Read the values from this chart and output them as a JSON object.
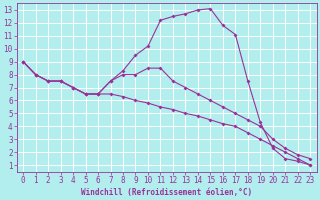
{
  "xlabel": "Windchill (Refroidissement éolien,°C)",
  "bg_color": "#b2eeee",
  "grid_color": "#ffffff",
  "line_color": "#993399",
  "spine_color": "#993399",
  "xlim": [
    -0.5,
    23.5
  ],
  "ylim": [
    0.5,
    13.5
  ],
  "xticks": [
    0,
    1,
    2,
    3,
    4,
    5,
    6,
    7,
    8,
    9,
    10,
    11,
    12,
    13,
    14,
    15,
    16,
    17,
    18,
    19,
    20,
    21,
    22,
    23
  ],
  "yticks": [
    1,
    2,
    3,
    4,
    5,
    6,
    7,
    8,
    9,
    10,
    11,
    12,
    13
  ],
  "line1_x": [
    0,
    1,
    2,
    3,
    4,
    5,
    6,
    7,
    8,
    9,
    10,
    11,
    12,
    13,
    14,
    15,
    16,
    17,
    18,
    19,
    20,
    21,
    22,
    23
  ],
  "line1_y": [
    9.0,
    8.0,
    7.5,
    7.5,
    7.0,
    6.5,
    6.5,
    7.5,
    8.3,
    9.5,
    10.2,
    12.2,
    12.5,
    12.7,
    13.0,
    13.1,
    11.8,
    11.1,
    7.5,
    4.3,
    2.3,
    1.5,
    1.3,
    1.0
  ],
  "line2_x": [
    0,
    1,
    2,
    3,
    4,
    5,
    6,
    7,
    8,
    9,
    10,
    11,
    12,
    13,
    14,
    15,
    16,
    17,
    18,
    19,
    20,
    21,
    22,
    23
  ],
  "line2_y": [
    9.0,
    8.0,
    7.5,
    7.5,
    7.0,
    6.5,
    6.5,
    7.5,
    8.0,
    8.0,
    8.5,
    8.5,
    7.5,
    7.0,
    6.5,
    6.0,
    5.5,
    5.0,
    4.5,
    4.0,
    3.0,
    2.3,
    1.8,
    1.5
  ],
  "line3_x": [
    0,
    1,
    2,
    3,
    4,
    5,
    6,
    7,
    8,
    9,
    10,
    11,
    12,
    13,
    14,
    15,
    16,
    17,
    18,
    19,
    20,
    21,
    22,
    23
  ],
  "line3_y": [
    9.0,
    8.0,
    7.5,
    7.5,
    7.0,
    6.5,
    6.5,
    6.5,
    6.3,
    6.0,
    5.8,
    5.5,
    5.3,
    5.0,
    4.8,
    4.5,
    4.2,
    4.0,
    3.5,
    3.0,
    2.5,
    2.0,
    1.5,
    1.0
  ],
  "tick_fontsize": 5.5,
  "xlabel_fontsize": 5.5,
  "marker_size": 2.0,
  "line_width": 0.8
}
